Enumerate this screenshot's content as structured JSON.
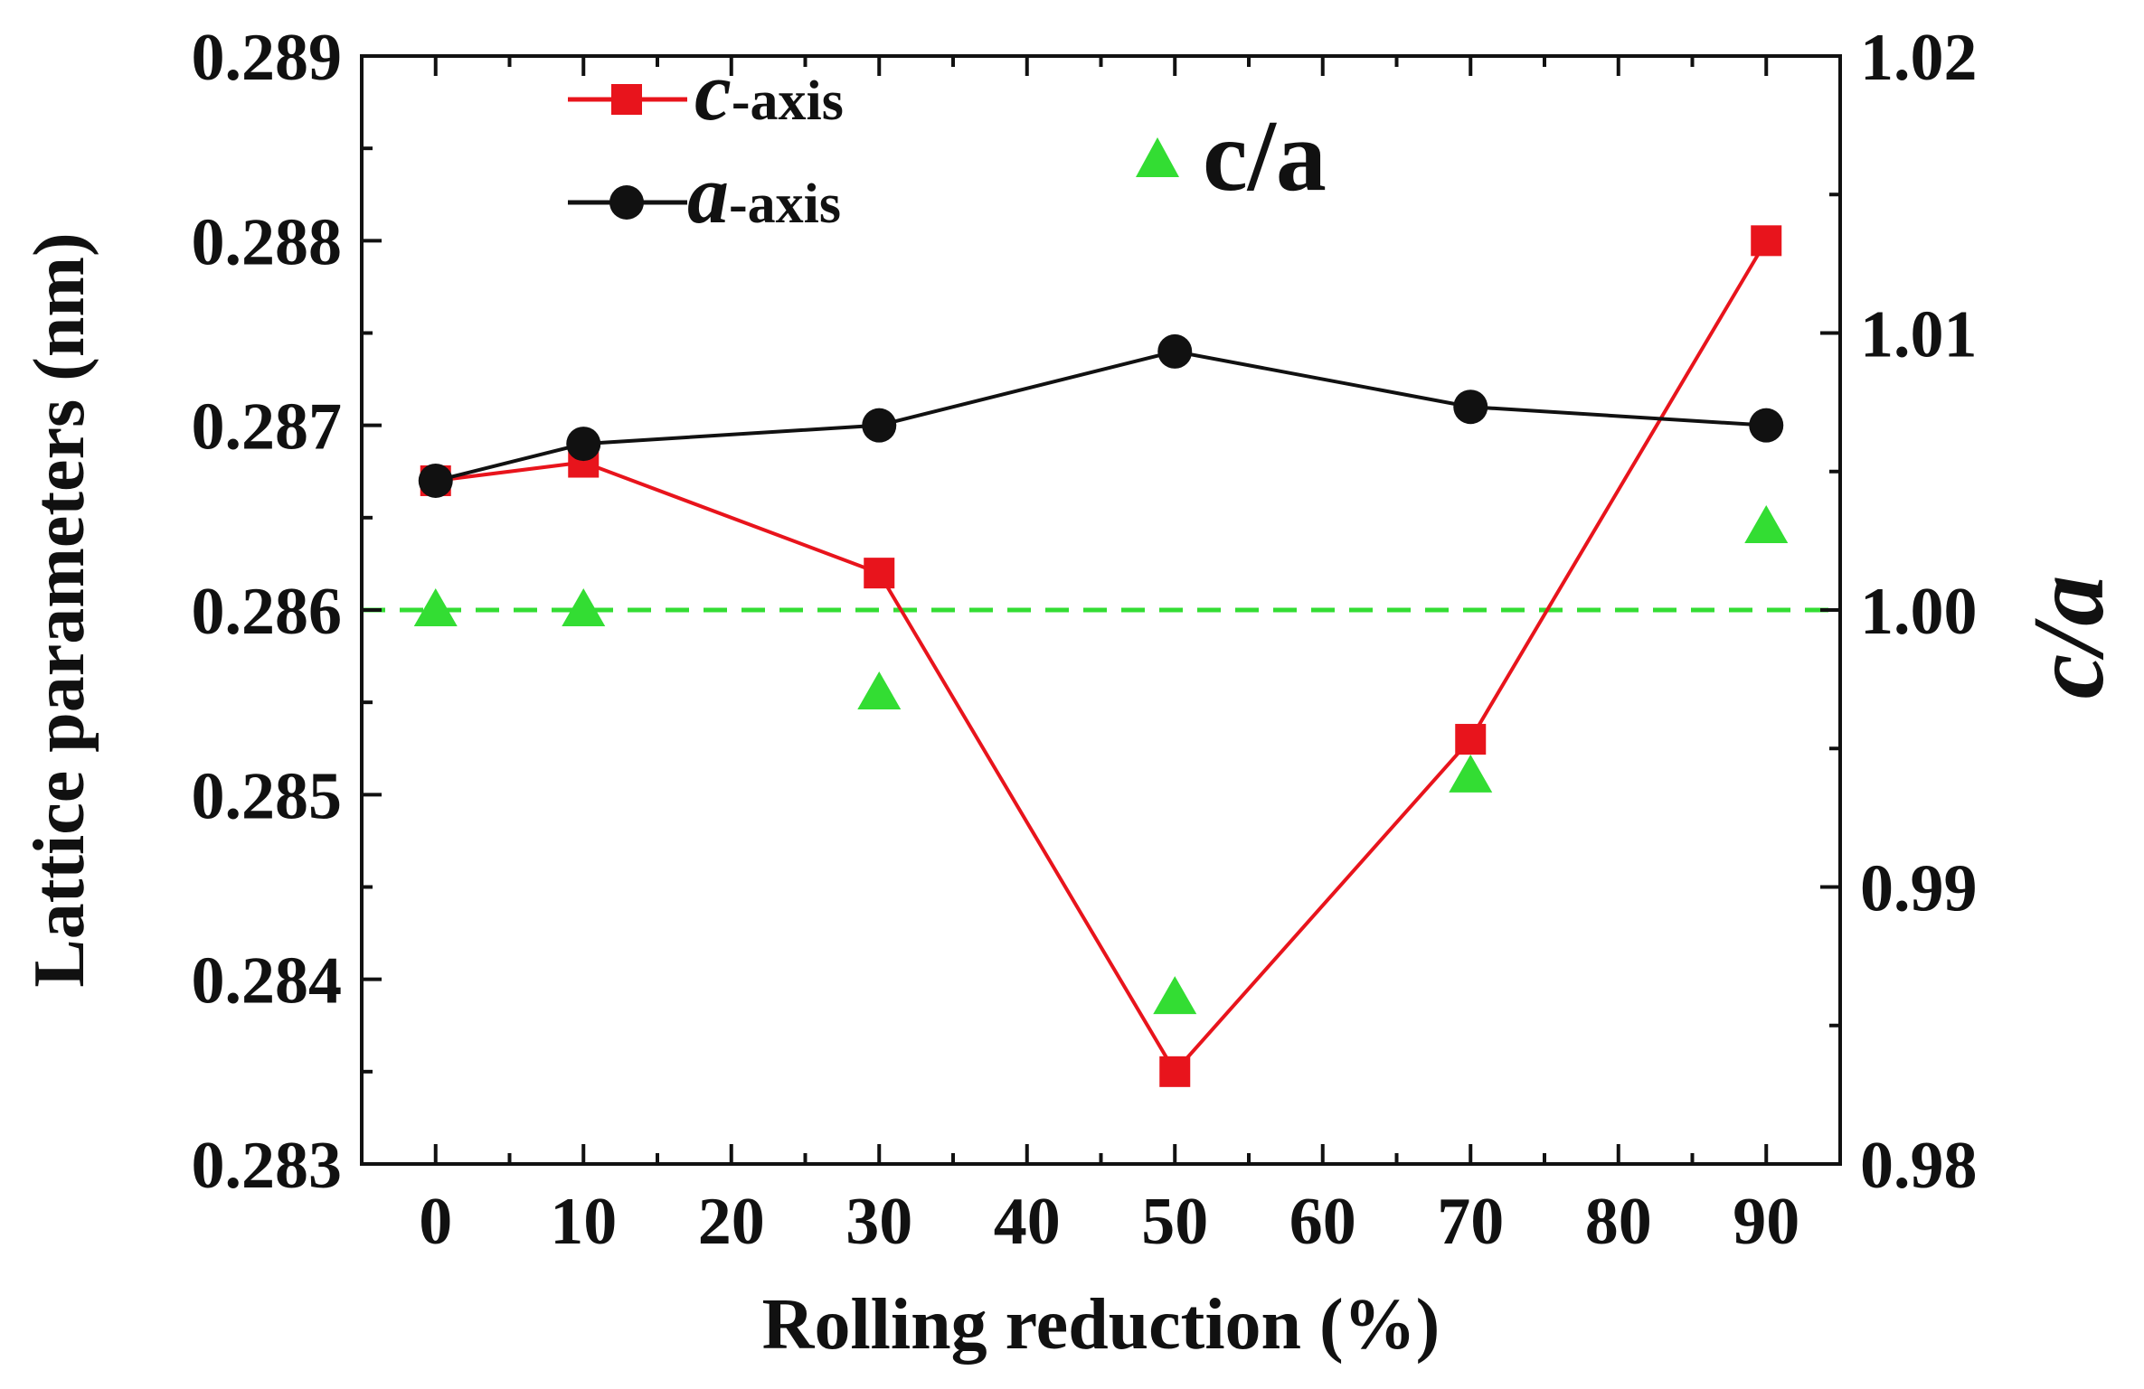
{
  "chart_data": {
    "type": "line",
    "xlabel": "Rolling reduction (%)",
    "ylabel": "Lattice parameters (nm)",
    "y2label": "c/a",
    "xlim": [
      -5,
      95
    ],
    "xticks": [
      0,
      10,
      20,
      30,
      40,
      50,
      60,
      70,
      80,
      90
    ],
    "ylim": [
      0.283,
      0.289
    ],
    "yticks": [
      "0.283",
      "0.284",
      "0.285",
      "0.286",
      "0.287",
      "0.288",
      "0.289"
    ],
    "y2lim": [
      0.98,
      1.02
    ],
    "y2ticks": [
      "0.98",
      "0.99",
      "1.00",
      "1.01",
      "1.02"
    ],
    "reference_line": {
      "axis": "y2",
      "value": 1.0,
      "style": "dashed",
      "color": "#33dd33"
    },
    "series": [
      {
        "name": "c-axis",
        "symbol": "c",
        "suffix": "-axis",
        "axis": "y",
        "marker": "square",
        "color": "#e8141c",
        "line": true,
        "x": [
          0,
          10,
          30,
          50,
          70,
          90
        ],
        "values": [
          0.2867,
          0.2868,
          0.2862,
          0.2835,
          0.2853,
          0.288
        ]
      },
      {
        "name": "a-axis",
        "symbol": "a",
        "suffix": "-axis",
        "axis": "y",
        "marker": "circle",
        "color": "#111111",
        "line": true,
        "x": [
          0,
          10,
          30,
          50,
          70,
          90
        ],
        "values": [
          0.2867,
          0.2869,
          0.287,
          0.2874,
          0.2871,
          0.287
        ]
      },
      {
        "name": "c/a",
        "axis": "y2",
        "marker": "triangle",
        "color": "#33dd33",
        "line": false,
        "x": [
          0,
          10,
          30,
          50,
          70,
          90
        ],
        "values": [
          1.0,
          1.0,
          0.997,
          0.986,
          0.994,
          1.003
        ]
      }
    ],
    "legend": {
      "placement": "top-left",
      "c_symbol": "c",
      "a_symbol": "a",
      "axis_suffix": "-axis",
      "ca_label": "c/a"
    }
  }
}
